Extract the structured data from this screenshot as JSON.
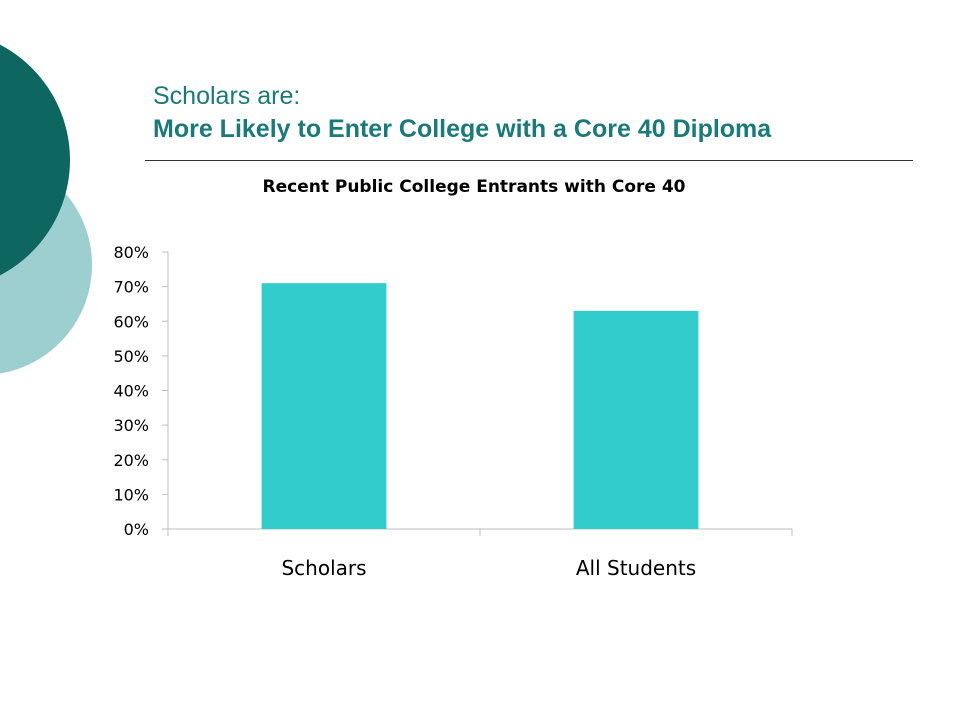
{
  "slide": {
    "title_line1": "Scholars are:",
    "title_line2": "More Likely to Enter College with a Core 40 Diploma",
    "theme_colors": {
      "dark_teal": "#0d6660",
      "light_teal": "#9ecfd0",
      "title_color": "#1a7a7a",
      "bar_color": "#33cccc"
    }
  },
  "chart_data": {
    "type": "bar",
    "title": "Recent Public College Entrants with Core 40",
    "categories": [
      "Scholars",
      "All Students"
    ],
    "values": [
      71,
      63
    ],
    "y_unit": "%",
    "ylim": [
      0,
      80
    ],
    "y_ticks": [
      "0%",
      "10%",
      "20%",
      "30%",
      "40%",
      "50%",
      "60%",
      "70%",
      "80%"
    ],
    "grid": false,
    "legend": "none",
    "xlabel": "",
    "ylabel": ""
  }
}
